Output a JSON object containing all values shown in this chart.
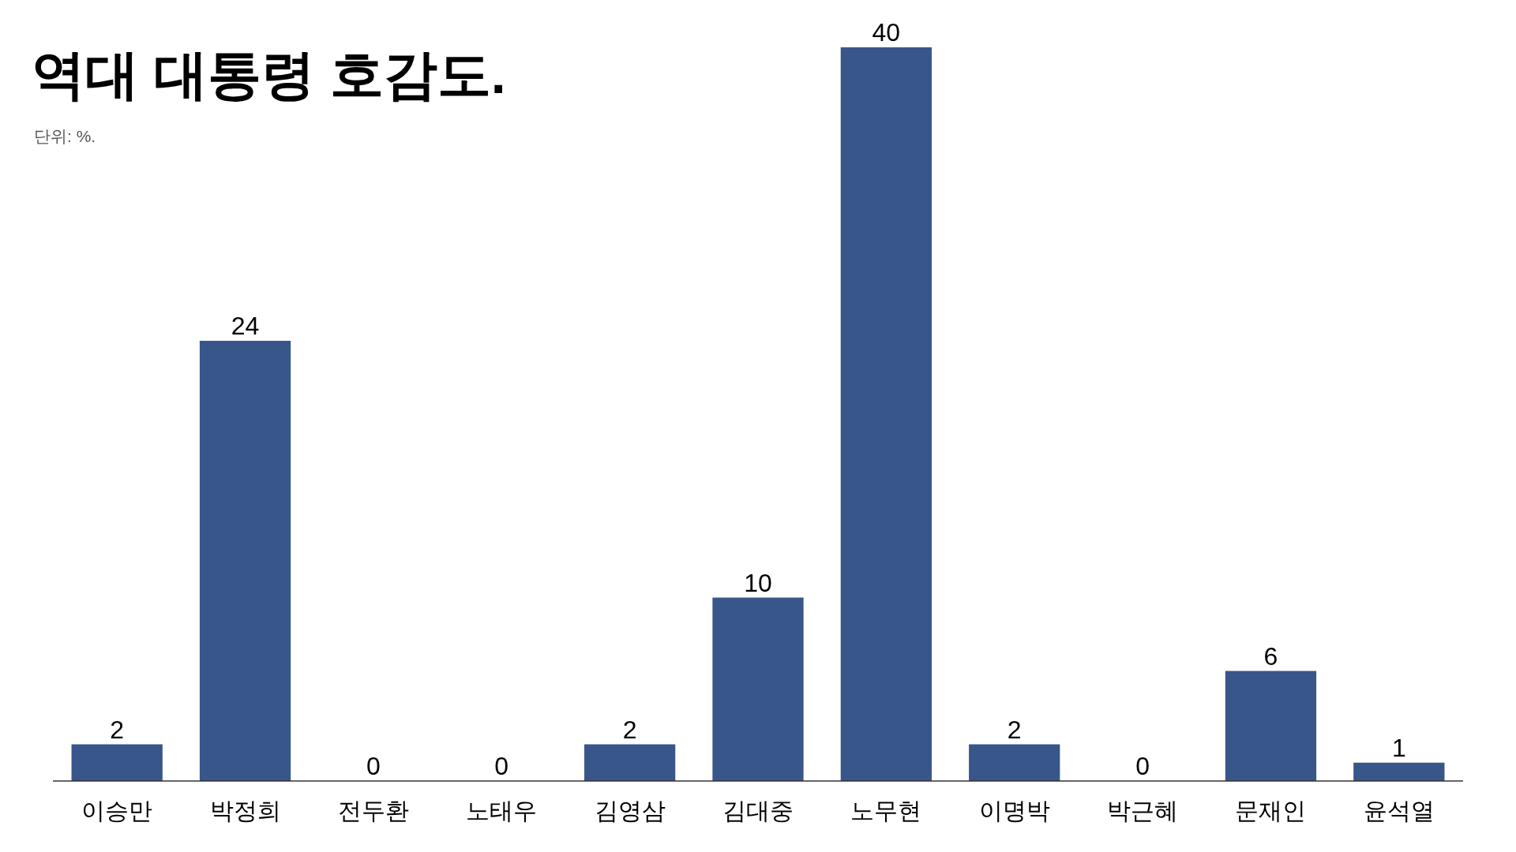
{
  "chart_data": {
    "type": "bar",
    "title": "역대 대통령 호감도.",
    "subtitle": "단위: %.",
    "categories": [
      "이승만",
      "박정희",
      "전두환",
      "노태우",
      "김영삼",
      "김대중",
      "노무현",
      "이명박",
      "박근혜",
      "문재인",
      "윤석열"
    ],
    "values": [
      2,
      24,
      0,
      0,
      2,
      10,
      40,
      2,
      0,
      6,
      1
    ],
    "color": "#38568a",
    "data_labels": true
  }
}
